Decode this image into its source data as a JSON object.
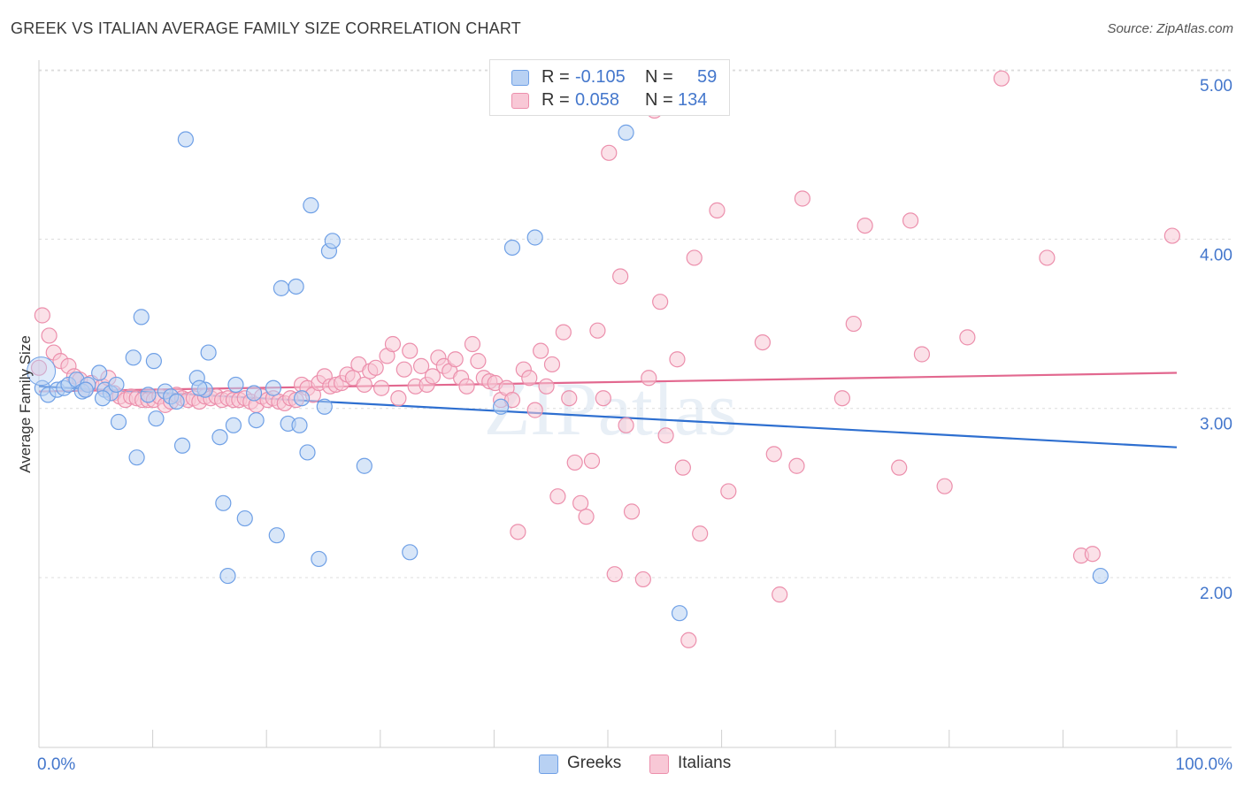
{
  "title": "GREEK VS ITALIAN AVERAGE FAMILY SIZE CORRELATION CHART",
  "source": "Source: ZipAtlas.com",
  "legend": {
    "rows": [
      {
        "r_label": "R =",
        "r_value": "-0.105",
        "n_label": "N =",
        "n_value": "59"
      },
      {
        "r_label": "R =",
        "r_value": "0.058",
        "n_label": "N =",
        "n_value": "134"
      }
    ]
  },
  "bottom_legend": [
    "Greeks",
    "Italians"
  ],
  "watermark": "ZIPatlas",
  "colors": {
    "greeks": "#6fa0e6",
    "greeks_fill": "#b8d1f3",
    "greeks_line": "#2e6fd0",
    "italians": "#ec8fac",
    "italians_fill": "#f8c8d6",
    "italians_line": "#e2688f",
    "tick": "#4477cc"
  },
  "chart_data": {
    "type": "scatter",
    "title": "GREEK VS ITALIAN AVERAGE FAMILY SIZE CORRELATION CHART",
    "xlabel": "",
    "ylabel": "Average Family Size",
    "xlim": [
      0,
      100
    ],
    "ylim": [
      1.15,
      5.1
    ],
    "x_tick_labels": [
      "0.0%",
      "100.0%"
    ],
    "y_ticks": [
      2.0,
      3.0,
      4.0,
      5.0
    ],
    "y_tick_labels": [
      "2.00",
      "3.00",
      "4.00",
      "5.00"
    ],
    "grid": "horizontal dashed",
    "legend_position": "top-center",
    "series": [
      {
        "name": "Greeks",
        "trend": {
          "x": [
            0,
            100
          ],
          "y": [
            3.13,
            2.77
          ]
        },
        "points": [
          [
            0.3,
            3.12
          ],
          [
            0.8,
            3.08
          ],
          [
            1.6,
            3.11
          ],
          [
            2.2,
            3.12
          ],
          [
            2.6,
            3.14
          ],
          [
            3.3,
            3.17
          ],
          [
            3.8,
            3.1
          ],
          [
            4.3,
            3.14
          ],
          [
            5.3,
            3.21
          ],
          [
            5.8,
            3.11
          ],
          [
            6.3,
            3.09
          ],
          [
            6.8,
            3.14
          ],
          [
            7.0,
            2.92
          ],
          [
            8.3,
            3.3
          ],
          [
            8.6,
            2.71
          ],
          [
            9.0,
            3.54
          ],
          [
            10.1,
            3.28
          ],
          [
            10.3,
            2.94
          ],
          [
            11.1,
            3.1
          ],
          [
            11.6,
            3.07
          ],
          [
            12.1,
            3.04
          ],
          [
            12.6,
            2.78
          ],
          [
            12.9,
            4.59
          ],
          [
            13.9,
            3.18
          ],
          [
            14.6,
            3.11
          ],
          [
            14.9,
            3.33
          ],
          [
            15.9,
            2.83
          ],
          [
            16.2,
            2.44
          ],
          [
            16.6,
            2.01
          ],
          [
            17.1,
            2.9
          ],
          [
            17.3,
            3.14
          ],
          [
            18.1,
            2.35
          ],
          [
            19.1,
            2.93
          ],
          [
            20.6,
            3.12
          ],
          [
            20.9,
            2.25
          ],
          [
            21.3,
            3.71
          ],
          [
            21.9,
            2.91
          ],
          [
            22.6,
            3.72
          ],
          [
            22.9,
            2.9
          ],
          [
            23.6,
            2.74
          ],
          [
            23.9,
            4.2
          ],
          [
            24.6,
            2.11
          ],
          [
            25.1,
            3.01
          ],
          [
            25.5,
            3.93
          ],
          [
            25.8,
            3.99
          ],
          [
            28.6,
            2.66
          ],
          [
            32.6,
            2.15
          ],
          [
            40.6,
            3.01
          ],
          [
            41.6,
            3.95
          ],
          [
            43.6,
            4.01
          ],
          [
            51.6,
            4.63
          ],
          [
            56.3,
            1.79
          ],
          [
            93.3,
            2.01
          ],
          [
            5.6,
            3.06
          ],
          [
            9.6,
            3.08
          ],
          [
            14.1,
            3.12
          ],
          [
            18.9,
            3.09
          ],
          [
            23.1,
            3.06
          ],
          [
            4.1,
            3.11
          ]
        ]
      },
      {
        "name": "Italians",
        "trend": {
          "x": [
            0,
            100
          ],
          "y": [
            3.1,
            3.21
          ]
        },
        "points": [
          [
            0.3,
            3.55
          ],
          [
            0.9,
            3.43
          ],
          [
            1.3,
            3.33
          ],
          [
            1.9,
            3.28
          ],
          [
            2.6,
            3.25
          ],
          [
            3.1,
            3.19
          ],
          [
            3.6,
            3.17
          ],
          [
            4.1,
            3.11
          ],
          [
            4.6,
            3.15
          ],
          [
            5.6,
            3.13
          ],
          [
            6.1,
            3.18
          ],
          [
            6.6,
            3.09
          ],
          [
            7.1,
            3.07
          ],
          [
            7.6,
            3.05
          ],
          [
            8.1,
            3.07
          ],
          [
            8.6,
            3.06
          ],
          [
            9.1,
            3.05
          ],
          [
            9.6,
            3.05
          ],
          [
            10.1,
            3.05
          ],
          [
            10.6,
            3.07
          ],
          [
            11.1,
            3.02
          ],
          [
            11.6,
            3.04
          ],
          [
            12.1,
            3.08
          ],
          [
            12.6,
            3.06
          ],
          [
            13.1,
            3.05
          ],
          [
            13.6,
            3.06
          ],
          [
            14.1,
            3.04
          ],
          [
            14.6,
            3.07
          ],
          [
            15.1,
            3.06
          ],
          [
            15.6,
            3.07
          ],
          [
            16.1,
            3.05
          ],
          [
            16.6,
            3.06
          ],
          [
            17.1,
            3.05
          ],
          [
            17.6,
            3.05
          ],
          [
            18.1,
            3.06
          ],
          [
            18.6,
            3.04
          ],
          [
            19.1,
            3.02
          ],
          [
            19.6,
            3.07
          ],
          [
            20.1,
            3.05
          ],
          [
            20.6,
            3.06
          ],
          [
            21.1,
            3.04
          ],
          [
            21.6,
            3.03
          ],
          [
            22.1,
            3.06
          ],
          [
            22.6,
            3.05
          ],
          [
            23.1,
            3.14
          ],
          [
            23.6,
            3.12
          ],
          [
            24.1,
            3.08
          ],
          [
            24.6,
            3.15
          ],
          [
            25.1,
            3.19
          ],
          [
            25.6,
            3.13
          ],
          [
            26.1,
            3.14
          ],
          [
            26.6,
            3.15
          ],
          [
            27.1,
            3.2
          ],
          [
            27.6,
            3.18
          ],
          [
            28.1,
            3.26
          ],
          [
            28.6,
            3.14
          ],
          [
            29.1,
            3.22
          ],
          [
            29.6,
            3.24
          ],
          [
            30.1,
            3.12
          ],
          [
            30.6,
            3.31
          ],
          [
            31.1,
            3.38
          ],
          [
            31.6,
            3.06
          ],
          [
            32.1,
            3.23
          ],
          [
            32.6,
            3.34
          ],
          [
            33.1,
            3.13
          ],
          [
            33.6,
            3.25
          ],
          [
            34.1,
            3.14
          ],
          [
            34.6,
            3.19
          ],
          [
            35.1,
            3.3
          ],
          [
            35.6,
            3.25
          ],
          [
            36.1,
            3.22
          ],
          [
            36.6,
            3.29
          ],
          [
            37.1,
            3.18
          ],
          [
            37.6,
            3.13
          ],
          [
            38.1,
            3.38
          ],
          [
            38.6,
            3.28
          ],
          [
            39.1,
            3.18
          ],
          [
            39.6,
            3.16
          ],
          [
            40.1,
            3.15
          ],
          [
            40.6,
            3.05
          ],
          [
            41.1,
            3.12
          ],
          [
            41.6,
            3.05
          ],
          [
            42.1,
            2.27
          ],
          [
            42.6,
            3.23
          ],
          [
            43.1,
            3.18
          ],
          [
            43.6,
            2.99
          ],
          [
            44.1,
            3.34
          ],
          [
            44.6,
            3.13
          ],
          [
            45.1,
            3.26
          ],
          [
            45.6,
            2.48
          ],
          [
            46.1,
            3.45
          ],
          [
            46.6,
            3.06
          ],
          [
            47.1,
            2.68
          ],
          [
            47.6,
            2.44
          ],
          [
            48.1,
            2.36
          ],
          [
            48.6,
            2.69
          ],
          [
            49.1,
            3.46
          ],
          [
            49.6,
            3.06
          ],
          [
            50.1,
            4.51
          ],
          [
            50.6,
            2.02
          ],
          [
            51.1,
            3.78
          ],
          [
            51.6,
            2.9
          ],
          [
            52.1,
            2.39
          ],
          [
            53.1,
            1.99
          ],
          [
            53.6,
            3.18
          ],
          [
            54.1,
            4.76
          ],
          [
            54.6,
            3.63
          ],
          [
            55.1,
            2.84
          ],
          [
            56.1,
            3.29
          ],
          [
            56.6,
            2.65
          ],
          [
            57.1,
            1.63
          ],
          [
            57.6,
            3.89
          ],
          [
            58.1,
            2.26
          ],
          [
            59.6,
            4.17
          ],
          [
            60.6,
            2.51
          ],
          [
            63.6,
            3.39
          ],
          [
            64.6,
            2.73
          ],
          [
            65.1,
            1.9
          ],
          [
            66.6,
            2.66
          ],
          [
            67.1,
            4.24
          ],
          [
            70.6,
            3.06
          ],
          [
            71.6,
            3.5
          ],
          [
            72.6,
            4.08
          ],
          [
            75.6,
            2.65
          ],
          [
            76.6,
            4.11
          ],
          [
            77.6,
            3.32
          ],
          [
            79.6,
            2.54
          ],
          [
            81.6,
            3.42
          ],
          [
            84.6,
            4.95
          ],
          [
            88.6,
            3.89
          ],
          [
            91.6,
            2.13
          ],
          [
            92.6,
            2.14
          ],
          [
            99.6,
            4.02
          ],
          [
            0.0,
            3.24
          ]
        ]
      }
    ]
  }
}
